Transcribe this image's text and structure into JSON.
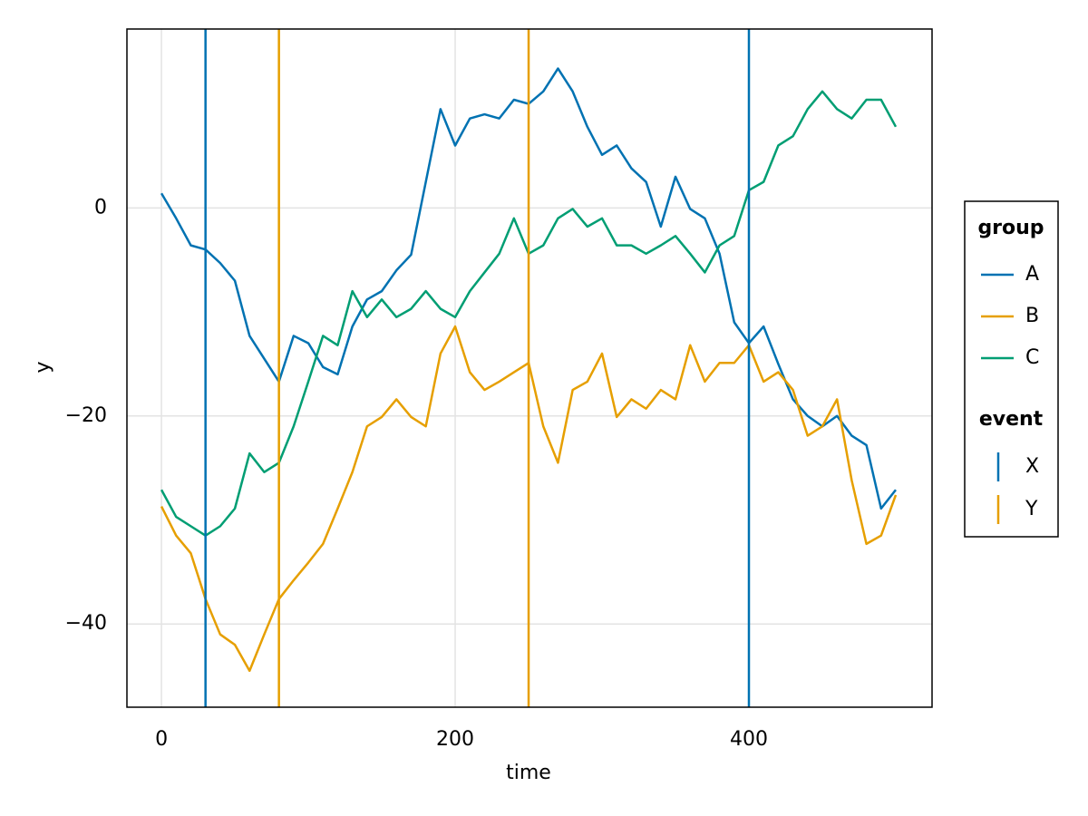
{
  "chart_data": {
    "type": "line",
    "xlabel": "time",
    "ylabel": "y",
    "x": [
      0,
      10,
      20,
      30,
      40,
      50,
      60,
      70,
      80,
      90,
      100,
      110,
      120,
      130,
      140,
      150,
      160,
      170,
      180,
      190,
      200,
      210,
      220,
      230,
      240,
      250,
      260,
      270,
      280,
      290,
      300,
      310,
      320,
      330,
      340,
      350,
      360,
      370,
      380,
      390,
      400,
      410,
      420,
      430,
      440,
      450,
      460,
      470,
      480,
      490,
      500
    ],
    "series": [
      {
        "name": "A",
        "color": "#0072b2",
        "values": [
          1.4,
          -1,
          -3.6,
          -4,
          -5.3,
          -7,
          -12.3,
          -14.5,
          -16.7,
          -12.3,
          -13,
          -15.3,
          -16,
          -11.4,
          -8.8,
          -8,
          -6,
          -4.5,
          2.5,
          9.5,
          6,
          8.6,
          9,
          8.6,
          10.4,
          10,
          11.2,
          13.4,
          11.2,
          7.8,
          5.1,
          6,
          3.8,
          2.5,
          -1.8,
          3,
          -0.1,
          -1,
          -4.4,
          -11,
          -13,
          -11.4,
          -15,
          -18.4,
          -20,
          -21,
          -20,
          -21.9,
          -22.8,
          -28.9,
          -27.1
        ]
      },
      {
        "name": "B",
        "color": "#e69f00",
        "values": [
          -28.7,
          -31.5,
          -33.2,
          -37.6,
          -41,
          -42,
          -44.5,
          -41,
          -37.6,
          -35.8,
          -34.1,
          -32.3,
          -28.9,
          -25.4,
          -21,
          -20.1,
          -18.4,
          -20.1,
          -21,
          -14,
          -11.4,
          -15.8,
          -17.5,
          -16.7,
          -15.8,
          -14.9,
          -21,
          -24.5,
          -17.5,
          -16.7,
          -14,
          -20.1,
          -18.4,
          -19.3,
          -17.5,
          -18.4,
          -13.2,
          -16.7,
          -14.9,
          -14.9,
          -13.2,
          -16.7,
          -15.8,
          -17.5,
          -21.9,
          -21,
          -18.4,
          -26.2,
          -32.3,
          -31.5,
          -27.6
        ]
      },
      {
        "name": "C",
        "color": "#009e73",
        "values": [
          -27.1,
          -29.7,
          -30.6,
          -31.5,
          -30.6,
          -28.9,
          -23.6,
          -25.4,
          -24.5,
          -21,
          -16.7,
          -12.3,
          -13.2,
          -8,
          -10.5,
          -8.8,
          -10.5,
          -9.7,
          -8,
          -9.7,
          -10.5,
          -8,
          -6.2,
          -4.4,
          -1,
          -4.4,
          -3.6,
          -1,
          -0.1,
          -1.8,
          -1,
          -3.6,
          -3.6,
          -4.4,
          -3.6,
          -2.7,
          -4.4,
          -6.2,
          -3.6,
          -2.7,
          1.7,
          2.5,
          6,
          6.9,
          9.5,
          11.2,
          9.5,
          8.6,
          10.4,
          10.4,
          7.8
        ]
      }
    ],
    "events": [
      {
        "name": "X",
        "color": "#0072b2",
        "x": [
          30,
          400
        ]
      },
      {
        "name": "Y",
        "color": "#e69f00",
        "x": [
          80,
          250
        ]
      }
    ],
    "legend_titles": [
      "group",
      "event"
    ],
    "legend": "right",
    "xlim": [
      -23.5,
      524.7
    ],
    "ylim": [
      -48,
      17.2
    ],
    "xticks": [
      0,
      200,
      400
    ],
    "yticks": [
      {
        "value": -40,
        "label": "−40"
      },
      {
        "value": -20,
        "label": "−20"
      },
      0
    ],
    "grid": true
  }
}
